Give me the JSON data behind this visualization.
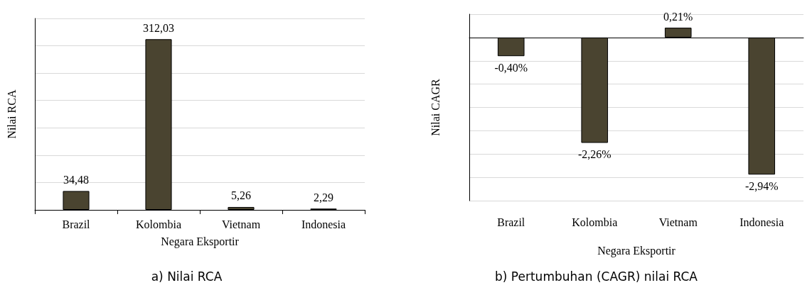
{
  "chart_data": [
    {
      "type": "bar",
      "title": "a) Nilai RCA",
      "xlabel": "Negara Eksportir",
      "ylabel": "Nilai RCA",
      "categories": [
        "Brazil",
        "Kolombia",
        "Vietnam",
        "Indonesia"
      ],
      "values": [
        34.48,
        312.03,
        5.26,
        2.29
      ],
      "value_labels": [
        "34,48",
        "312,03",
        "5,26",
        "2,29"
      ],
      "color": "#4a4430",
      "ylim": [
        0,
        350
      ],
      "yticks": [
        {
          "value": 0,
          "label": null
        },
        {
          "value": 50,
          "label": null
        },
        {
          "value": 100,
          "label": null
        },
        {
          "value": 150,
          "label": null
        },
        {
          "value": 200,
          "label": null
        },
        {
          "value": 250,
          "label": null
        },
        {
          "value": 300,
          "label": null
        },
        {
          "value": 350,
          "label": null
        }
      ],
      "grid": "y",
      "tick_labels": "x"
    },
    {
      "type": "bar",
      "title": "b) Pertumbuhan (CAGR) nilai RCA",
      "xlabel": "Negara Eksportir",
      "ylabel": "Nilai CAGR",
      "categories": [
        "Brazil",
        "Kolombia",
        "Vietnam",
        "Indonesia"
      ],
      "values": [
        -0.4,
        -2.26,
        0.21,
        -2.94
      ],
      "value_labels": [
        "-0,40%",
        "-2,26%",
        "0,21%",
        "-2,94%"
      ],
      "color": "#4a4430",
      "ylim": [
        -3.5,
        0.5
      ],
      "yticks": [
        {
          "value": -3,
          "label": null
        },
        {
          "value": -2.5,
          "label": null
        },
        {
          "value": -2,
          "label": null
        },
        {
          "value": -1.5,
          "label": null
        },
        {
          "value": -1,
          "label": null
        },
        {
          "value": -0.5,
          "label": null
        },
        {
          "value": 0,
          "label": null
        },
        {
          "value": 0.5,
          "label": null
        }
      ],
      "grid": "y",
      "tick_labels": "x"
    }
  ]
}
